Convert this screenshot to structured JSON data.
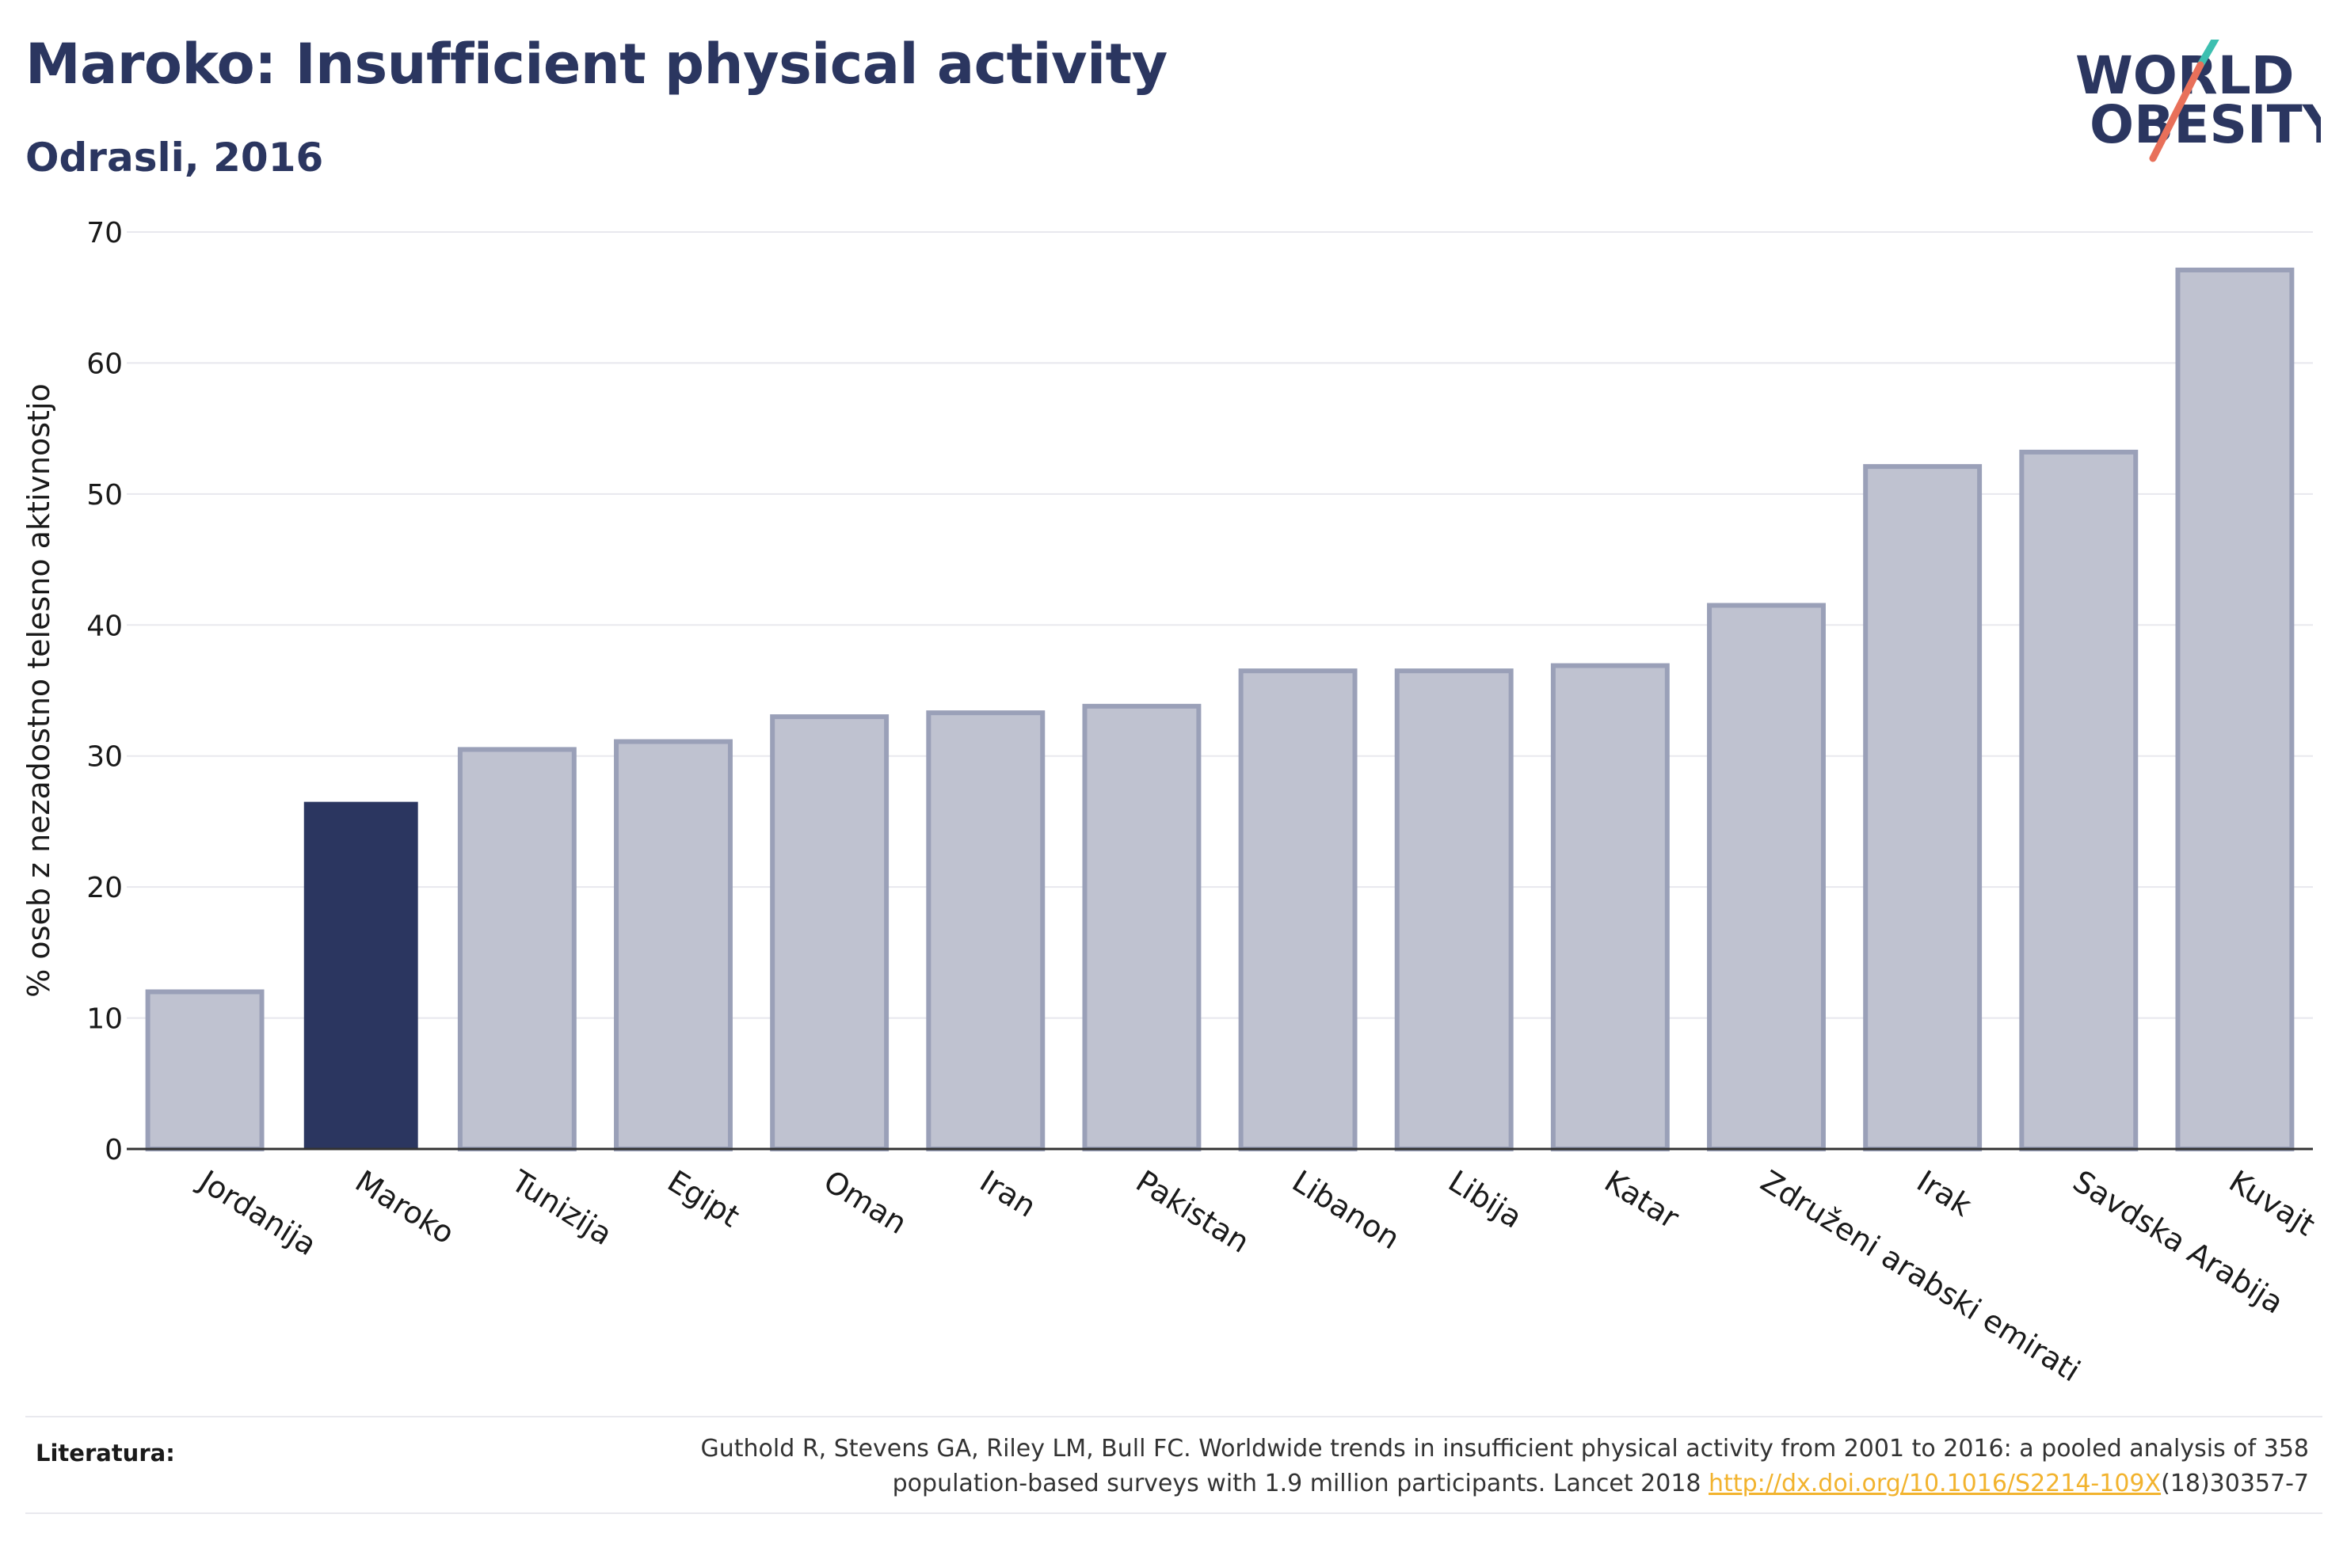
{
  "header": {
    "title": "Maroko: Insufficient physical activity",
    "subtitle": "Odrasli, 2016"
  },
  "logo": {
    "line1": "WORLD",
    "line2": "OBESITY",
    "accent_colors": [
      "#e8705a",
      "#3dbfb0"
    ]
  },
  "colors": {
    "highlight": "#2b3660",
    "bar_fill": "#bfc2d0",
    "bar_stroke": "#9aa0b8",
    "text": "#2b3660",
    "link": "#f2b32e"
  },
  "chart_data": {
    "type": "bar",
    "categories": [
      "Jordanija",
      "Maroko",
      "Tunizija",
      "Egipt",
      "Oman",
      "Iran",
      "Pakistan",
      "Libanon",
      "Libija",
      "Katar",
      "Združeni arabski emirati",
      "Irak",
      "Savdska Arabija",
      "Kuvajt"
    ],
    "values": [
      12.0,
      26.5,
      30.5,
      31.1,
      33.0,
      33.3,
      33.8,
      36.5,
      36.5,
      36.9,
      41.5,
      52.1,
      53.2,
      67.1
    ],
    "highlight": "Maroko",
    "xlabel": "",
    "ylabel": "% oseb z nezadostno telesno aktivnostjo",
    "ylim": [
      0,
      70
    ],
    "yticks": [
      0,
      10,
      20,
      30,
      40,
      50,
      60,
      70
    ],
    "grid": true,
    "legend": "none"
  },
  "footer": {
    "label": "Literatura:",
    "text_line1": "Guthold R, Stevens GA, Riley LM, Bull FC. Worldwide trends in insufficient physical activity from 2001 to 2016: a pooled analysis of 358",
    "text_line2_before": "population-based surveys with 1.9 million participants. Lancet 2018 ",
    "link_text": "http://dx.doi.org/10.1016/S2214-109X",
    "text_line2_after": "(18)30357-7"
  }
}
